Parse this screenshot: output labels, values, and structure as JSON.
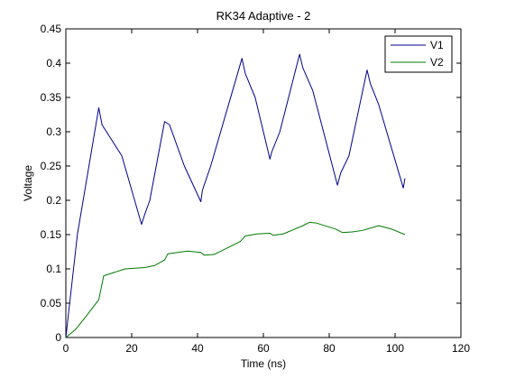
{
  "chart_data": {
    "type": "line",
    "title": "RK34 Adaptive - 2",
    "xlabel": "Time (ns)",
    "ylabel": "Voltage",
    "xlim": [
      0,
      120
    ],
    "ylim": [
      0,
      0.45
    ],
    "xticks": [
      0,
      20,
      40,
      60,
      80,
      100,
      120
    ],
    "yticks": [
      0,
      0.05,
      0.1,
      0.15,
      0.2,
      0.25,
      0.3,
      0.35,
      0.4,
      0.45
    ],
    "xtick_labels": [
      "0",
      "20",
      "40",
      "60",
      "80",
      "100",
      "120"
    ],
    "ytick_labels": [
      "0",
      "0.05",
      "0.1",
      "0.15",
      "0.2",
      "0.25",
      "0.3",
      "0.35",
      "0.4",
      "0.45"
    ],
    "grid": false,
    "legend_position": "top-right",
    "series": [
      {
        "name": "V1",
        "color": "#00008b",
        "points": [
          [
            0,
            0
          ],
          [
            3.5,
            0.15
          ],
          [
            10,
            0.335
          ],
          [
            11,
            0.31
          ],
          [
            17,
            0.265
          ],
          [
            23,
            0.165
          ],
          [
            24,
            0.18
          ],
          [
            25.5,
            0.2
          ],
          [
            30,
            0.315
          ],
          [
            31.5,
            0.31
          ],
          [
            36,
            0.25
          ],
          [
            41,
            0.198
          ],
          [
            41.5,
            0.215
          ],
          [
            44,
            0.25
          ],
          [
            53.5,
            0.407
          ],
          [
            54.5,
            0.385
          ],
          [
            57.5,
            0.35
          ],
          [
            62,
            0.26
          ],
          [
            62.5,
            0.27
          ],
          [
            65,
            0.3
          ],
          [
            71,
            0.413
          ],
          [
            72,
            0.393
          ],
          [
            75,
            0.36
          ],
          [
            82.5,
            0.222
          ],
          [
            83.5,
            0.24
          ],
          [
            86,
            0.265
          ],
          [
            91.5,
            0.39
          ],
          [
            92.5,
            0.37
          ],
          [
            95,
            0.34
          ],
          [
            102.5,
            0.218
          ],
          [
            103,
            0.232
          ]
        ]
      },
      {
        "name": "V2",
        "color": "#007a00",
        "points": [
          [
            0,
            0
          ],
          [
            3,
            0.012
          ],
          [
            6,
            0.03
          ],
          [
            10,
            0.055
          ],
          [
            11.5,
            0.09
          ],
          [
            18,
            0.1
          ],
          [
            24,
            0.102
          ],
          [
            27,
            0.105
          ],
          [
            30,
            0.113
          ],
          [
            31,
            0.122
          ],
          [
            37,
            0.126
          ],
          [
            41,
            0.124
          ],
          [
            42,
            0.12
          ],
          [
            45,
            0.121
          ],
          [
            48,
            0.128
          ],
          [
            53,
            0.14
          ],
          [
            54.5,
            0.148
          ],
          [
            58,
            0.151
          ],
          [
            62,
            0.152
          ],
          [
            63,
            0.149
          ],
          [
            66,
            0.151
          ],
          [
            72,
            0.163
          ],
          [
            74,
            0.168
          ],
          [
            76,
            0.167
          ],
          [
            82,
            0.158
          ],
          [
            84,
            0.153
          ],
          [
            87,
            0.154
          ],
          [
            90,
            0.156
          ],
          [
            95,
            0.163
          ],
          [
            99,
            0.158
          ],
          [
            103,
            0.15
          ]
        ]
      }
    ]
  }
}
